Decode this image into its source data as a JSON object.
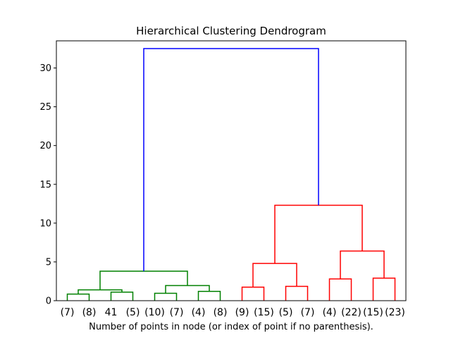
{
  "chart_data": {
    "type": "dendrogram",
    "title": "Hierarchical Clustering Dendrogram",
    "xlabel": "Number of points in node (or index of point if no parenthesis).",
    "ylabel": "",
    "ylim": [
      0,
      33.5
    ],
    "yticks": [
      0,
      5,
      10,
      15,
      20,
      25,
      30
    ],
    "ytick_labels": [
      "0",
      "5",
      "10",
      "15",
      "20",
      "25",
      "30"
    ],
    "leaf_labels": [
      "(7)",
      "(8)",
      "41",
      "(5)",
      "(10)",
      "(7)",
      "(4)",
      "(8)",
      "(9)",
      "(15)",
      "(5)",
      "(7)",
      "(4)",
      "(22)",
      "(15)",
      "(23)"
    ],
    "colors": {
      "left_cluster": "#008000",
      "right_cluster": "#ff0000",
      "root": "#0000ff",
      "axis": "#000000"
    },
    "links": [
      {
        "left": 0,
        "right": 1,
        "height": 0.85,
        "cluster": "left_cluster"
      },
      {
        "left": 2,
        "right": 3,
        "height": 1.1,
        "cluster": "left_cluster"
      },
      {
        "left": 4,
        "right": 5,
        "height": 0.95,
        "cluster": "left_cluster"
      },
      {
        "left": 6,
        "right": 7,
        "height": 1.2,
        "cluster": "left_cluster"
      },
      {
        "left": 16,
        "right": 17,
        "height": 1.4,
        "cluster": "left_cluster"
      },
      {
        "left": 18,
        "right": 19,
        "height": 1.95,
        "cluster": "left_cluster"
      },
      {
        "left": 20,
        "right": 21,
        "height": 3.8,
        "cluster": "left_cluster"
      },
      {
        "left": 8,
        "right": 9,
        "height": 1.75,
        "cluster": "right_cluster"
      },
      {
        "left": 10,
        "right": 11,
        "height": 1.85,
        "cluster": "right_cluster"
      },
      {
        "left": 12,
        "right": 13,
        "height": 2.8,
        "cluster": "right_cluster"
      },
      {
        "left": 14,
        "right": 15,
        "height": 2.9,
        "cluster": "right_cluster"
      },
      {
        "left": 23,
        "right": 24,
        "height": 4.8,
        "cluster": "right_cluster"
      },
      {
        "left": 25,
        "right": 26,
        "height": 6.4,
        "cluster": "right_cluster"
      },
      {
        "left": 27,
        "right": 28,
        "height": 12.3,
        "cluster": "right_cluster"
      },
      {
        "left": 22,
        "right": 29,
        "height": 32.5,
        "cluster": "root"
      }
    ]
  }
}
